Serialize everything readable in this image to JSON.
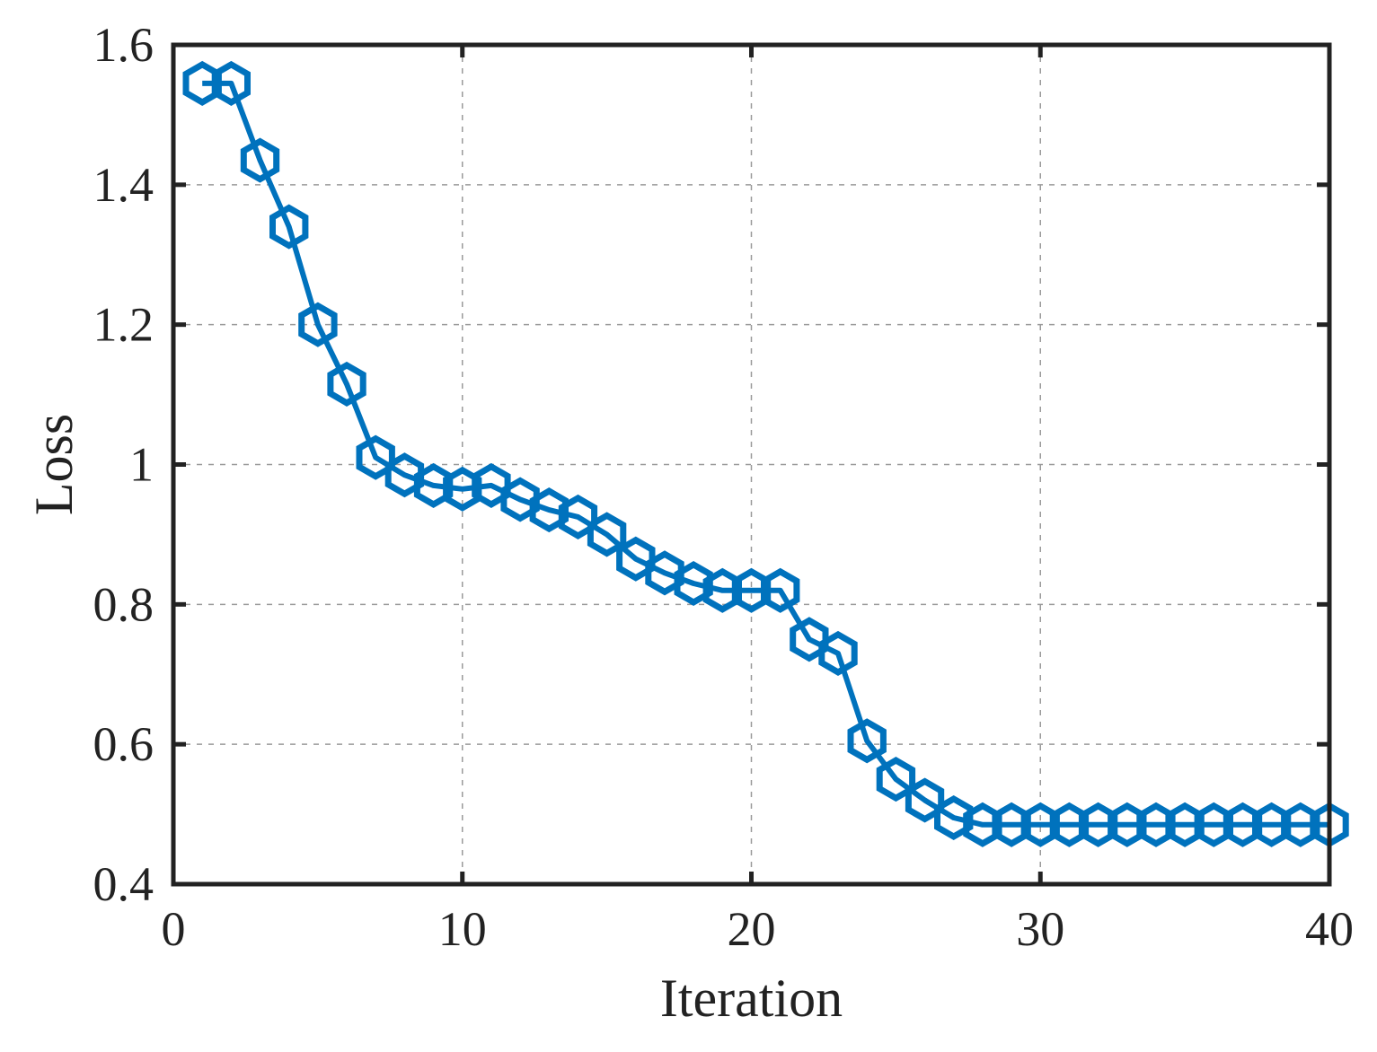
{
  "chart_data": {
    "type": "line",
    "title": "",
    "xlabel": "Iteration",
    "ylabel": "Loss",
    "xlim": [
      0,
      40
    ],
    "ylim": [
      0.4,
      1.6
    ],
    "x_ticks": [
      0,
      10,
      20,
      30,
      40
    ],
    "x_tick_labels": [
      "0",
      "10",
      "20",
      "30",
      "40"
    ],
    "y_ticks": [
      0.4,
      0.6,
      0.8,
      1.0,
      1.2,
      1.4,
      1.6
    ],
    "y_tick_labels": [
      "0.4",
      "0.6",
      "0.8",
      "1",
      "1.2",
      "1.4",
      "1.6"
    ],
    "grid": true,
    "legend": "none",
    "series": [
      {
        "color": "#0072bd",
        "marker": "hexagon",
        "x": [
          1,
          2,
          3,
          4,
          5,
          6,
          7,
          8,
          9,
          10,
          11,
          12,
          13,
          14,
          15,
          16,
          17,
          18,
          19,
          20,
          21,
          22,
          23,
          24,
          25,
          26,
          27,
          28,
          29,
          30,
          31,
          32,
          33,
          34,
          35,
          36,
          37,
          38,
          39,
          40
        ],
        "y": [
          1.545,
          1.545,
          1.435,
          1.34,
          1.2,
          1.115,
          1.01,
          0.985,
          0.97,
          0.965,
          0.97,
          0.95,
          0.935,
          0.925,
          0.9,
          0.865,
          0.845,
          0.83,
          0.82,
          0.82,
          0.82,
          0.75,
          0.73,
          0.605,
          0.55,
          0.52,
          0.495,
          0.485,
          0.485,
          0.485,
          0.485,
          0.485,
          0.485,
          0.485,
          0.485,
          0.485,
          0.485,
          0.485,
          0.485,
          0.485
        ]
      }
    ]
  }
}
